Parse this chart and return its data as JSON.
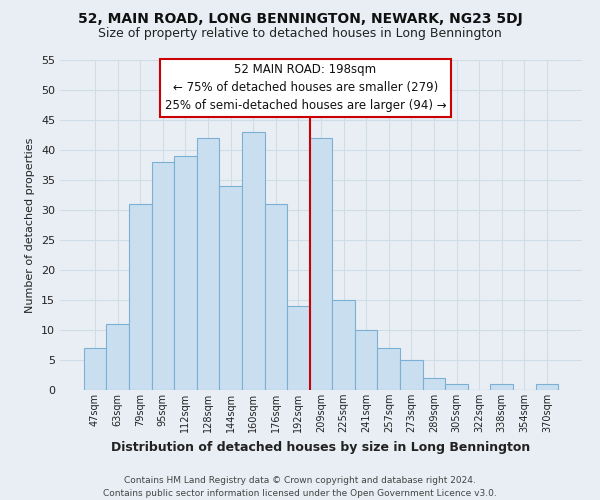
{
  "title": "52, MAIN ROAD, LONG BENNINGTON, NEWARK, NG23 5DJ",
  "subtitle": "Size of property relative to detached houses in Long Bennington",
  "xlabel": "Distribution of detached houses by size in Long Bennington",
  "ylabel": "Number of detached properties",
  "bar_labels": [
    "47sqm",
    "63sqm",
    "79sqm",
    "95sqm",
    "112sqm",
    "128sqm",
    "144sqm",
    "160sqm",
    "176sqm",
    "192sqm",
    "209sqm",
    "225sqm",
    "241sqm",
    "257sqm",
    "273sqm",
    "289sqm",
    "305sqm",
    "322sqm",
    "338sqm",
    "354sqm",
    "370sqm"
  ],
  "bar_values": [
    7,
    11,
    31,
    38,
    39,
    42,
    34,
    43,
    31,
    14,
    42,
    15,
    10,
    7,
    5,
    2,
    1,
    0,
    1,
    0,
    1
  ],
  "bar_facecolor": "#c9dff0",
  "bar_edgecolor": "#7bafd4",
  "vline_x": 9.5,
  "vline_color": "#cc0000",
  "ylim": [
    0,
    55
  ],
  "yticks": [
    0,
    5,
    10,
    15,
    20,
    25,
    30,
    35,
    40,
    45,
    50,
    55
  ],
  "box_text_line1": "52 MAIN ROAD: 198sqm",
  "box_text_line2": "← 75% of detached houses are smaller (279)",
  "box_text_line3": "25% of semi-detached houses are larger (94) →",
  "box_facecolor": "#ffffff",
  "box_edgecolor": "#cc0000",
  "footer_line1": "Contains HM Land Registry data © Crown copyright and database right 2024.",
  "footer_line2": "Contains public sector information licensed under the Open Government Licence v3.0.",
  "background_color": "#e8eef4",
  "grid_color": "#d0dce8",
  "title_fontsize": 10,
  "subtitle_fontsize": 9
}
